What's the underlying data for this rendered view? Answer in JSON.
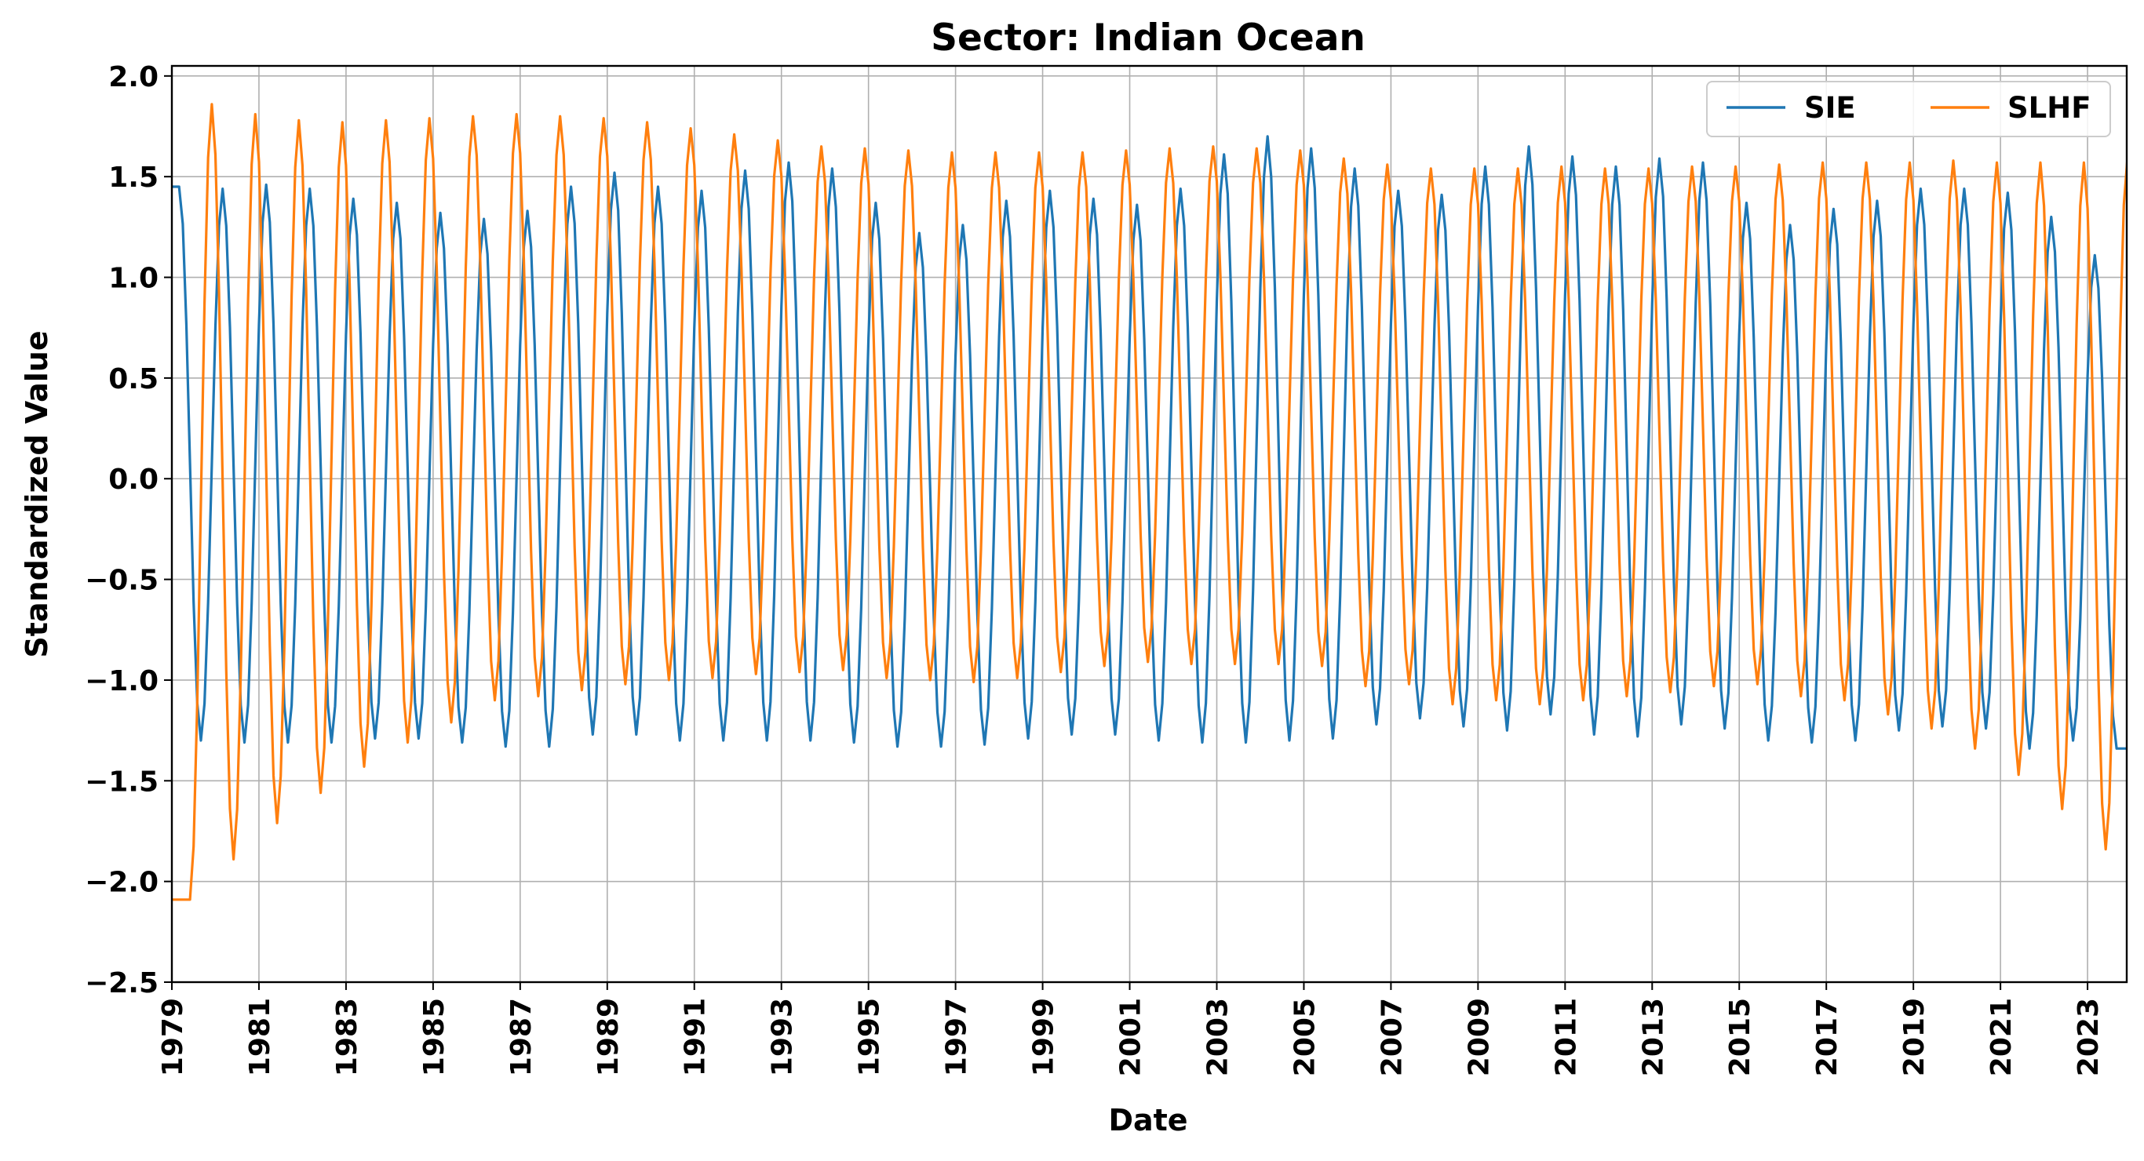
{
  "chart_data": {
    "type": "line",
    "title": "Sector: Indian Ocean",
    "xlabel": "Date",
    "ylabel": "Standardized Value",
    "xlim": [
      1979.0,
      2023.9
    ],
    "ylim": [
      -2.5,
      2.05
    ],
    "x_ticks": [
      "1979",
      "1981",
      "1983",
      "1985",
      "1987",
      "1989",
      "1991",
      "1993",
      "1995",
      "1997",
      "1999",
      "2001",
      "2003",
      "2005",
      "2007",
      "2009",
      "2011",
      "2013",
      "2015",
      "2017",
      "2019",
      "2021",
      "2023"
    ],
    "y_ticks": [
      "2.0",
      "1.5",
      "1.0",
      "0.5",
      "0.0",
      "−0.5",
      "−1.0",
      "−1.5",
      "−2.0",
      "−2.5"
    ],
    "grid": true,
    "legend_position": "top-right",
    "x_monthly_start": "1979-01",
    "series": [
      {
        "name": "SIE",
        "color": "#1f77b4",
        "annual_min": [
          -1.3,
          -1.31,
          -1.31,
          -1.31,
          -1.29,
          -1.29,
          -1.31,
          -1.33,
          -1.33,
          -1.27,
          -1.27,
          -1.3,
          -1.3,
          -1.3,
          -1.3,
          -1.31,
          -1.33,
          -1.33,
          -1.32,
          -1.29,
          -1.27,
          -1.27,
          -1.3,
          -1.31,
          -1.31,
          -1.3,
          -1.29,
          -1.22,
          -1.19,
          -1.23,
          -1.25,
          -1.17,
          -1.27,
          -1.28,
          -1.22,
          -1.24,
          -1.3,
          -1.31,
          -1.3,
          -1.25,
          -1.23,
          -1.24,
          -1.34,
          -1.3,
          -1.34
        ],
        "annual_max": [
          1.45,
          1.44,
          1.46,
          1.44,
          1.39,
          1.37,
          1.32,
          1.29,
          1.33,
          1.45,
          1.52,
          1.45,
          1.43,
          1.53,
          1.57,
          1.54,
          1.37,
          1.22,
          1.26,
          1.38,
          1.43,
          1.39,
          1.36,
          1.44,
          1.61,
          1.7,
          1.64,
          1.54,
          1.43,
          1.41,
          1.55,
          1.65,
          1.6,
          1.55,
          1.59,
          1.57,
          1.37,
          1.26,
          1.34,
          1.38,
          1.44,
          1.44,
          1.42,
          1.3,
          1.11
        ],
        "annual_min_month": [
          8,
          8,
          8,
          8,
          8,
          8,
          8,
          8,
          8,
          8,
          8,
          8,
          8,
          8,
          8,
          8,
          8,
          8,
          8,
          8,
          8,
          8,
          8,
          8,
          8,
          8,
          8,
          8,
          8,
          8,
          8,
          8,
          8,
          8,
          8,
          8,
          8,
          8,
          8,
          8,
          8,
          8,
          8,
          8,
          8
        ],
        "annual_max_month": [
          2,
          2,
          2,
          2,
          2,
          2,
          2,
          2,
          2,
          2,
          2,
          2,
          2,
          2,
          2,
          2,
          2,
          2,
          2,
          2,
          2,
          2,
          2,
          2,
          2,
          2,
          2,
          2,
          2,
          2,
          2,
          2,
          2,
          2,
          2,
          2,
          2,
          2,
          2,
          2,
          2,
          2,
          2,
          2,
          2
        ]
      },
      {
        "name": "SLHF",
        "color": "#ff7f0e",
        "annual_min": [
          -2.09,
          -1.89,
          -1.71,
          -1.56,
          -1.43,
          -1.31,
          -1.21,
          -1.1,
          -1.08,
          -1.05,
          -1.02,
          -1.0,
          -0.99,
          -0.97,
          -0.96,
          -0.95,
          -0.99,
          -1.0,
          -1.01,
          -0.99,
          -0.96,
          -0.93,
          -0.91,
          -0.92,
          -0.92,
          -0.92,
          -0.93,
          -1.03,
          -1.02,
          -1.12,
          -1.1,
          -1.12,
          -1.1,
          -1.08,
          -1.06,
          -1.03,
          -1.02,
          -1.08,
          -1.1,
          -1.17,
          -1.24,
          -1.34,
          -1.47,
          -1.64,
          -1.84
        ],
        "annual_max": [
          1.86,
          1.81,
          1.78,
          1.77,
          1.78,
          1.79,
          1.8,
          1.81,
          1.8,
          1.79,
          1.77,
          1.74,
          1.71,
          1.68,
          1.65,
          1.64,
          1.63,
          1.62,
          1.62,
          1.62,
          1.62,
          1.63,
          1.64,
          1.65,
          1.64,
          1.63,
          1.59,
          1.56,
          1.54,
          1.54,
          1.54,
          1.55,
          1.54,
          1.54,
          1.55,
          1.55,
          1.56,
          1.57,
          1.57,
          1.57,
          1.58,
          1.57,
          1.57,
          1.57,
          1.59
        ],
        "annual_min_month": [
          5,
          5,
          5,
          5,
          5,
          5,
          5,
          5,
          5,
          5,
          5,
          5,
          5,
          5,
          5,
          5,
          5,
          5,
          5,
          5,
          5,
          5,
          5,
          5,
          5,
          5,
          5,
          5,
          5,
          5,
          5,
          5,
          5,
          5,
          5,
          5,
          5,
          5,
          5,
          5,
          5,
          5,
          5,
          5,
          5
        ],
        "annual_max_month": [
          11,
          11,
          11,
          11,
          11,
          11,
          11,
          11,
          11,
          11,
          11,
          11,
          11,
          11,
          11,
          11,
          11,
          11,
          11,
          11,
          11,
          11,
          11,
          11,
          11,
          11,
          11,
          11,
          11,
          11,
          11,
          11,
          11,
          11,
          11,
          11,
          11,
          11,
          11,
          11,
          11,
          11,
          11,
          11,
          11
        ]
      }
    ]
  }
}
